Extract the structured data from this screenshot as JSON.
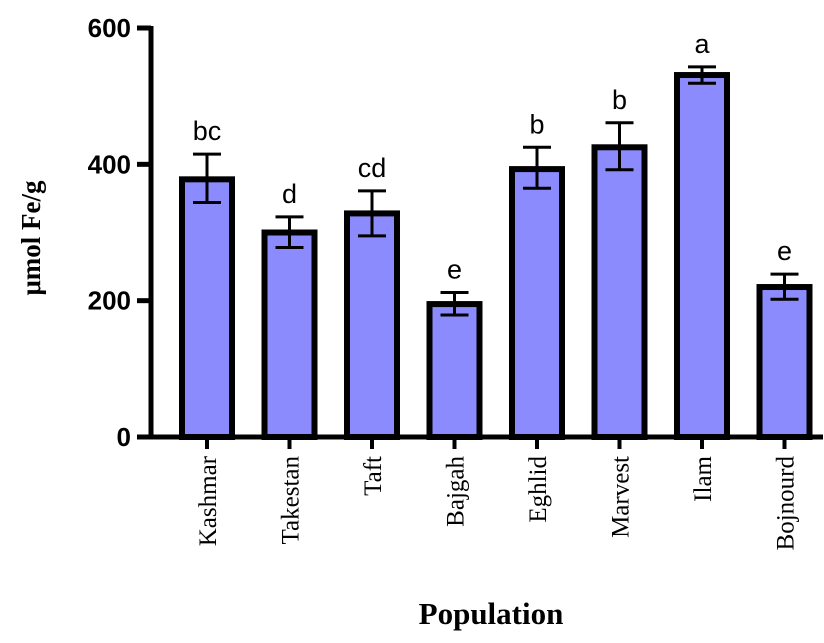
{
  "chart_data": {
    "type": "bar",
    "xlabel": "Population",
    "ylabel": "μmol Fe/g",
    "ylim": [
      0,
      600
    ],
    "yticks": [
      0,
      200,
      400,
      600
    ],
    "grid": false,
    "bar_color": "#8b8bfd",
    "categories": [
      "Kashmar",
      "Takestan",
      "Taft",
      "Bajgah",
      "Eghlid",
      "Marvest",
      "Ilam",
      "Bojnourd"
    ],
    "values": [
      378,
      300,
      328,
      195,
      393,
      425,
      531,
      220
    ],
    "error_lower": [
      34,
      22,
      33,
      16,
      28,
      33,
      12,
      18
    ],
    "error_upper": [
      37,
      23,
      33,
      17,
      32,
      36,
      12,
      19
    ],
    "significance_letters": [
      "bc",
      "d",
      "cd",
      "e",
      "b",
      "b",
      "a",
      "e"
    ]
  }
}
